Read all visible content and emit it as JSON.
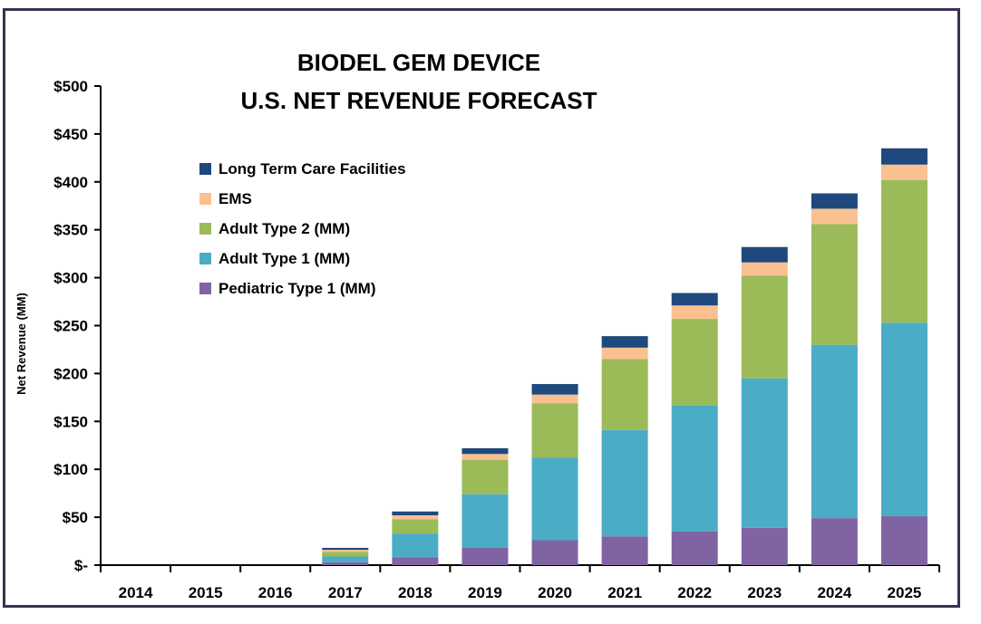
{
  "chart_data": {
    "type": "bar",
    "stacked": true,
    "title": [
      "BIODEL GEM DEVICE",
      "U.S. NET REVENUE FORECAST"
    ],
    "xlabel": "",
    "ylabel": "Net Revenue (MM)",
    "ylim": [
      0,
      500
    ],
    "y_ticks": [
      0,
      50,
      100,
      150,
      200,
      250,
      300,
      350,
      400,
      450,
      500
    ],
    "y_tick_labels": [
      "$-",
      "$50",
      "$100",
      "$150",
      "$200",
      "$250",
      "$300",
      "$350",
      "$400",
      "$450",
      "$500"
    ],
    "categories": [
      "2014",
      "2015",
      "2016",
      "2017",
      "2018",
      "2019",
      "2020",
      "2021",
      "2022",
      "2023",
      "2024",
      "2025"
    ],
    "legend_position": "top-left",
    "grid": false,
    "series": [
      {
        "name": "Pediatric Type 1 (MM)",
        "color": "#8064a2",
        "values": [
          0,
          0,
          0,
          3,
          8,
          18,
          26,
          30,
          35,
          39,
          49,
          51
        ]
      },
      {
        "name": "Adult Type 1 (MM)",
        "color": "#4bacc6",
        "values": [
          0,
          0,
          0,
          6,
          25,
          56,
          86,
          111,
          132,
          156,
          181,
          202
        ]
      },
      {
        "name": "Adult Type 2 (MM)",
        "color": "#9bbb59",
        "values": [
          0,
          0,
          0,
          5,
          15,
          36,
          57,
          74,
          90,
          107,
          126,
          149
        ]
      },
      {
        "name": "EMS",
        "color": "#fac090",
        "values": [
          0,
          0,
          0,
          2,
          4,
          6,
          9,
          12,
          14,
          14,
          16,
          16
        ]
      },
      {
        "name": "Long Term Care Facilities",
        "color": "#1f497d",
        "values": [
          0,
          0,
          0,
          2,
          4,
          6,
          11,
          12,
          13,
          16,
          16,
          17
        ]
      }
    ]
  }
}
